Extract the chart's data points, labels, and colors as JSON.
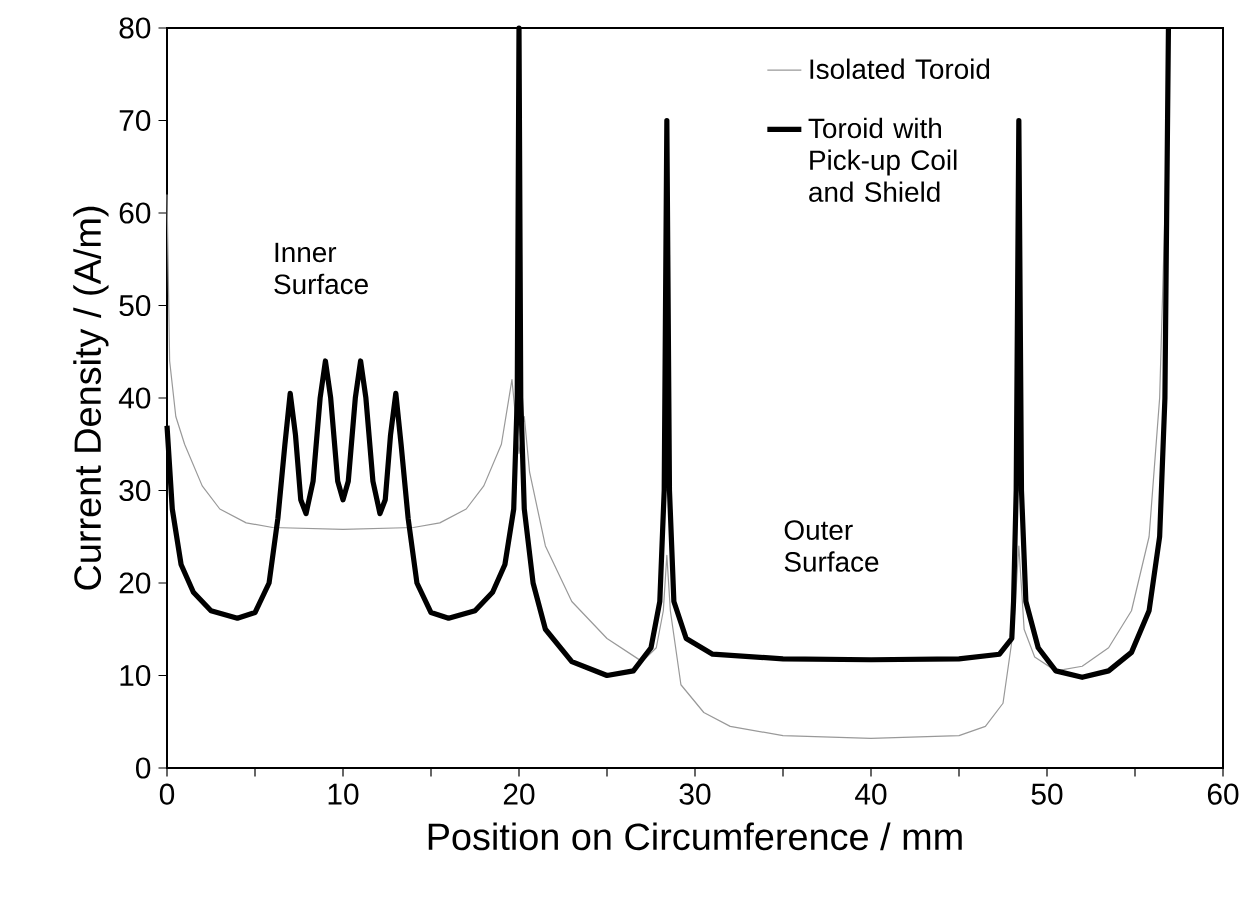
{
  "chart_data": {
    "type": "line",
    "xlabel": "Position on Circumference / mm",
    "ylabel": "Current Density / (A/m)",
    "xlim": [
      0,
      60
    ],
    "ylim": [
      0,
      80
    ],
    "xticks": [
      0,
      {
        "value": 5,
        "label": null
      },
      10,
      {
        "value": 15,
        "label": null
      },
      20,
      {
        "value": 25,
        "label": null
      },
      30,
      {
        "value": 35,
        "label": null
      },
      40,
      {
        "value": 45,
        "label": null
      },
      50,
      {
        "value": 55,
        "label": null
      },
      60
    ],
    "yticks": [
      0,
      10,
      20,
      30,
      40,
      50,
      60,
      70,
      80
    ],
    "grid": false,
    "legend": "top",
    "marker": "none",
    "line_style": "solid",
    "annotations": [
      "Inner Surface",
      "Outer Surface"
    ],
    "series": [
      {
        "name": "Isolated Toroid",
        "color": "#999999",
        "x": [
          0,
          0.15,
          0.5,
          1,
          2,
          3,
          4.5,
          6,
          10,
          14,
          15.5,
          17,
          18,
          19,
          19.6,
          20,
          20.3,
          20.6,
          21.5,
          23,
          25,
          27,
          27.8,
          28.2,
          28.4,
          28.6,
          29.2,
          30.5,
          32,
          35,
          40,
          45,
          46.5,
          47.5,
          48.1,
          48.4,
          48.7,
          49.3,
          50.5,
          52,
          53.5,
          54.8,
          55.8,
          56.4,
          56.7,
          56.9
        ],
        "values": [
          62,
          44,
          38,
          35,
          30.5,
          28,
          26.5,
          26,
          25.8,
          26,
          26.5,
          28,
          30.5,
          35,
          42,
          34,
          38,
          32,
          24,
          18,
          14,
          11.5,
          13,
          17,
          23,
          17,
          9,
          6,
          4.5,
          3.5,
          3.2,
          3.5,
          4.5,
          7,
          15,
          24,
          15,
          12,
          10.5,
          11,
          13,
          17,
          25,
          40,
          60,
          80
        ]
      },
      {
        "name": "Toroid with Pick-up Coil and Shield",
        "color": "#000000",
        "x": [
          0,
          0.3,
          0.8,
          1.5,
          2.5,
          4,
          5,
          5.8,
          6.3,
          6.7,
          7,
          7.3,
          7.6,
          7.9,
          8.3,
          8.7,
          9,
          9.3,
          9.7,
          10,
          10.3,
          10.7,
          11,
          11.3,
          11.7,
          12.1,
          12.4,
          12.7,
          13,
          13.3,
          13.7,
          14.2,
          15,
          16,
          17.5,
          18.5,
          19.2,
          19.7,
          19.9,
          20,
          20.1,
          20.3,
          20.8,
          21.5,
          23,
          25,
          26.5,
          27.5,
          28,
          28.25,
          28.4,
          28.55,
          28.8,
          29.5,
          31,
          35,
          40,
          45,
          47.3,
          48,
          48.1,
          48.25,
          48.4,
          48.55,
          48.8,
          49.5,
          50.5,
          52,
          53.5,
          54.8,
          55.8,
          56.4,
          56.7,
          56.9
        ],
        "values": [
          37,
          28,
          22,
          19,
          17,
          16.2,
          16.8,
          20,
          27,
          35,
          40.5,
          36,
          29,
          27.5,
          31,
          40,
          44,
          40,
          31,
          29,
          31,
          40,
          44,
          40,
          31,
          27.5,
          29,
          36,
          40.5,
          35,
          27,
          20,
          16.8,
          16.2,
          17,
          19,
          22,
          28,
          40,
          80,
          40,
          28,
          20,
          15,
          11.5,
          10,
          10.5,
          13,
          18,
          30,
          70,
          30,
          18,
          14,
          12.3,
          11.8,
          11.7,
          11.8,
          12.3,
          14,
          18,
          30,
          70,
          30,
          18,
          13,
          10.5,
          9.8,
          10.5,
          12.5,
          17,
          25,
          40,
          80
        ]
      }
    ]
  }
}
